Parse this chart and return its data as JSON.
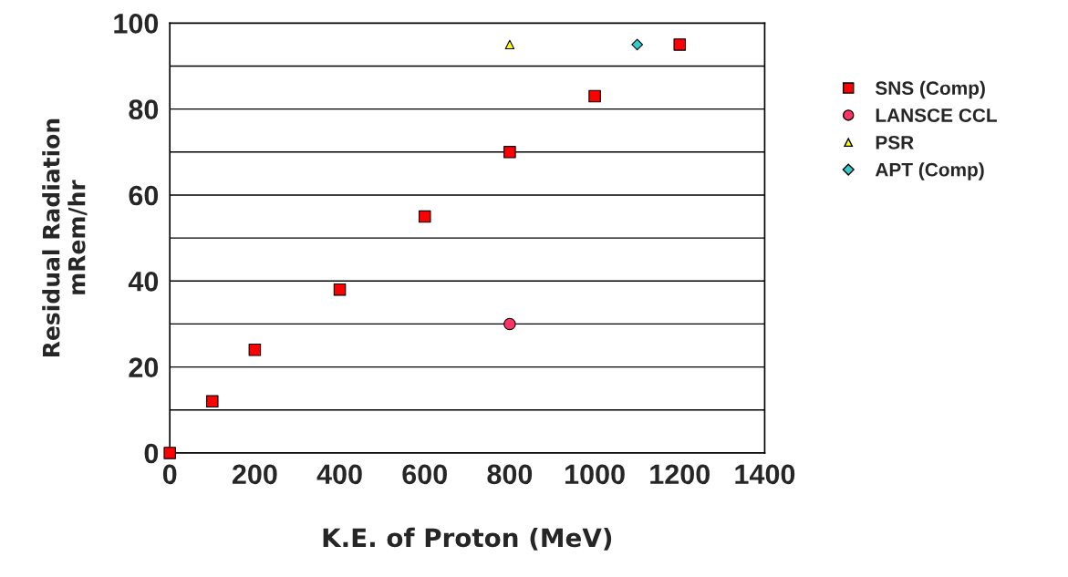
{
  "chart_data": {
    "type": "scatter",
    "xlabel": "K.E. of Proton (MeV)",
    "ylabel": "Residual Radiation\nmRem/hr",
    "xlim": [
      0,
      1400
    ],
    "xticks": [
      0,
      200,
      400,
      600,
      800,
      1000,
      1200,
      1400
    ],
    "ylim": [
      0,
      100
    ],
    "yticks": [
      0,
      {
        "value": 10,
        "label": null
      },
      20,
      {
        "value": 30,
        "label": null
      },
      40,
      {
        "value": 50,
        "label": null
      },
      60,
      {
        "value": 70,
        "label": null
      },
      80,
      {
        "value": 90,
        "label": null
      },
      100
    ],
    "grid": "y",
    "legend": "right",
    "series": [
      {
        "name": "SNS (Comp)",
        "color": "#ff0000",
        "marker": "square",
        "x": [
          0,
          100,
          200,
          400,
          600,
          800,
          1000,
          1200
        ],
        "values": [
          0,
          12,
          24,
          38,
          55,
          70,
          83,
          95
        ]
      },
      {
        "name": "LANSCE CCL",
        "color": "#ff3366",
        "marker": "circle",
        "x": [
          800
        ],
        "values": [
          30
        ]
      },
      {
        "name": "PSR",
        "color": "#ffff00",
        "marker": "triangle",
        "x": [
          800
        ],
        "values": [
          95
        ]
      },
      {
        "name": "APT (Comp)",
        "color": "#33cccc",
        "marker": "diamond",
        "x": [
          1100
        ],
        "values": [
          95
        ]
      }
    ]
  }
}
